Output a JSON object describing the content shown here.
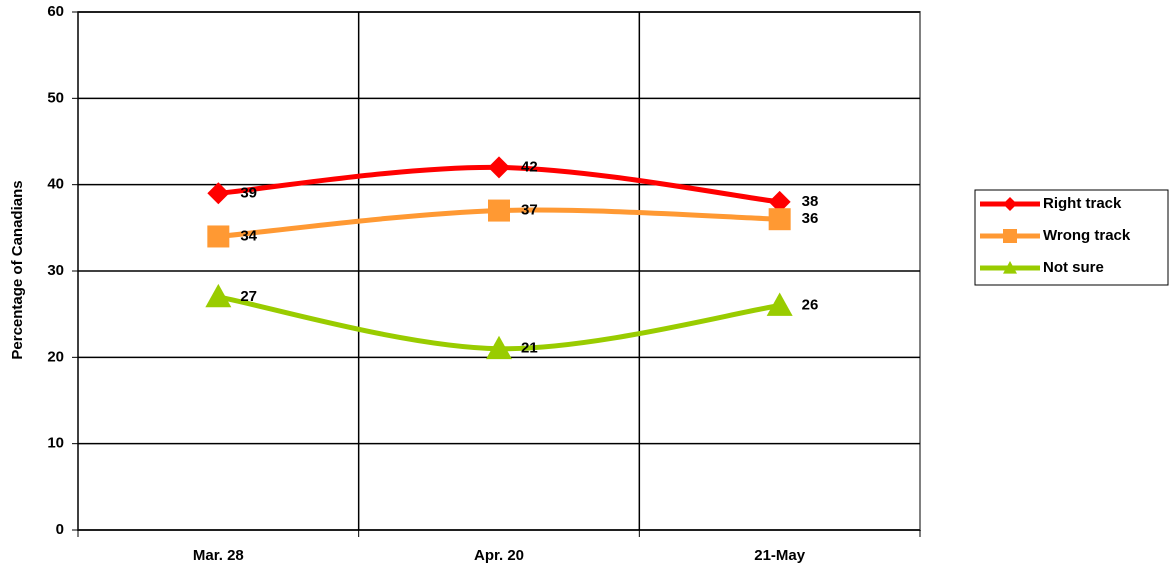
{
  "chart_data": {
    "type": "line",
    "y_label": "Percentage of Canadians",
    "categories": [
      "Mar. 28",
      "Apr. 20",
      "21-May"
    ],
    "series": [
      {
        "name": "Right track",
        "color": "#ff0000",
        "marker": "diamond",
        "values": [
          39,
          42,
          38
        ]
      },
      {
        "name": "Wrong track",
        "color": "#ff9933",
        "marker": "square",
        "values": [
          34,
          37,
          36
        ]
      },
      {
        "name": "Not sure",
        "color": "#99cc00",
        "marker": "triangle",
        "values": [
          27,
          21,
          26
        ]
      }
    ],
    "ylim": [
      0,
      60
    ],
    "yticks": [
      0,
      10,
      20,
      30,
      40,
      50,
      60
    ],
    "grid": true,
    "legend": "right",
    "smooth": true
  }
}
